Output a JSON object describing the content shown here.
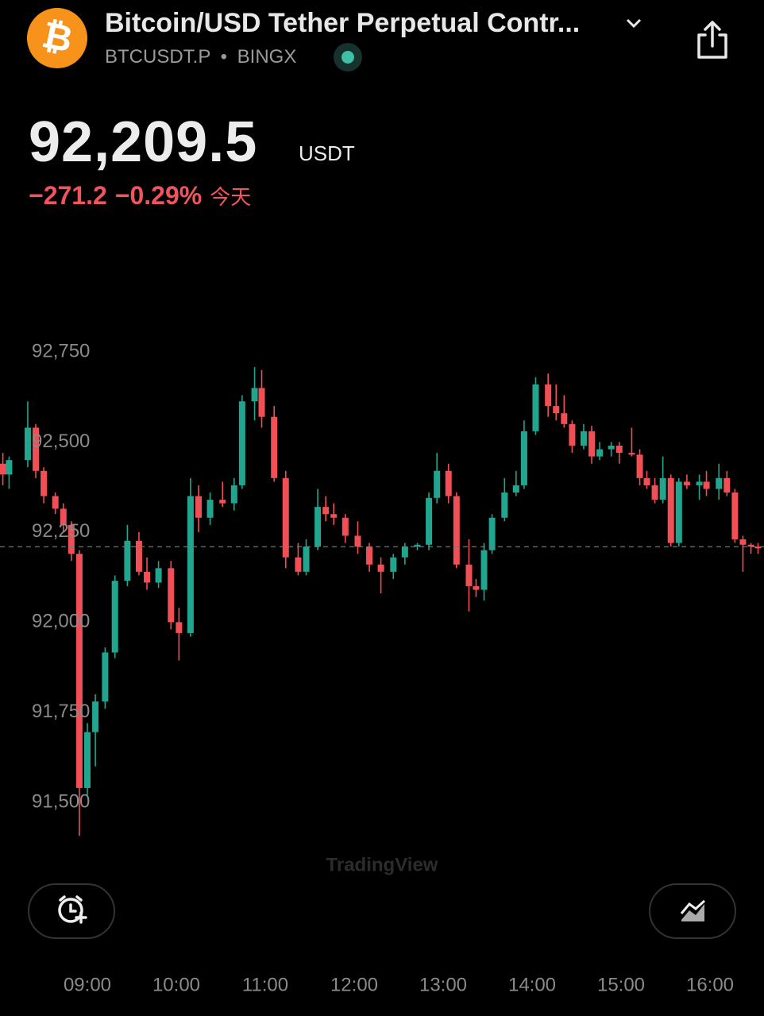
{
  "header": {
    "logo_symbol": "₿",
    "title": "Bitcoin/USD Tether Perpetual Contr...",
    "symbol": "BTCUSDT.P",
    "separator": "•",
    "exchange": "BINGX",
    "price": "92,209.5",
    "currency": "USDT",
    "change": "−271.2",
    "change_percent": "−0.29%",
    "period": "今天"
  },
  "watermark": "TradingView",
  "chart_data": {
    "type": "candlestick",
    "up_color": "#22a58f",
    "down_color": "#ef4f55",
    "last_price": 92209.5,
    "x": [
      8.05,
      8.12,
      8.33,
      8.42,
      8.51,
      8.64,
      8.73,
      8.82,
      8.91,
      9.0,
      9.09,
      9.2,
      9.31,
      9.45,
      9.58,
      9.67,
      9.8,
      9.94,
      10.03,
      10.16,
      10.25,
      10.38,
      10.52,
      10.65,
      10.74,
      10.88,
      10.96,
      11.1,
      11.23,
      11.37,
      11.46,
      11.59,
      11.68,
      11.77,
      11.9,
      12.04,
      12.17,
      12.3,
      12.44,
      12.57,
      12.71,
      12.84,
      12.93,
      13.06,
      13.15,
      13.29,
      13.37,
      13.46,
      13.55,
      13.69,
      13.82,
      13.91,
      14.04,
      14.18,
      14.27,
      14.36,
      14.45,
      14.58,
      14.67,
      14.76,
      14.89,
      14.98,
      15.12,
      15.21,
      15.29,
      15.38,
      15.47,
      15.56,
      15.65,
      15.74,
      15.88,
      15.96,
      16.1,
      16.19,
      16.28,
      16.37,
      16.46,
      16.54
    ],
    "open": [
      92440,
      92410,
      92450,
      92540,
      92420,
      92350,
      92315,
      92270,
      92190,
      91540,
      91695,
      91780,
      91916,
      92115,
      92226,
      92140,
      92110,
      92150,
      92000,
      91970,
      92350,
      92290,
      92340,
      92330,
      92380,
      92613,
      92650,
      92570,
      92400,
      92180,
      92140,
      92210,
      92320,
      92300,
      92290,
      92240,
      92210,
      92160,
      92140,
      92180,
      92210,
      92215,
      92345,
      92420,
      92350,
      92160,
      92100,
      92090,
      92200,
      92290,
      92360,
      92380,
      92530,
      92660,
      92600,
      92580,
      92550,
      92490,
      92530,
      92460,
      92480,
      92490,
      92470,
      92465,
      92400,
      92380,
      92340,
      92400,
      92220,
      92390,
      92380,
      92390,
      92370,
      92400,
      92360,
      92230,
      92215,
      92210
    ],
    "high": [
      92470,
      92460,
      92613,
      92550,
      92430,
      92360,
      92330,
      92280,
      92200,
      91720,
      91800,
      91930,
      92130,
      92270,
      92250,
      92180,
      92170,
      92170,
      92040,
      92400,
      92380,
      92360,
      92390,
      92400,
      92630,
      92708,
      92700,
      92600,
      92420,
      92220,
      92230,
      92370,
      92350,
      92330,
      92300,
      92280,
      92220,
      92180,
      92190,
      92220,
      92220,
      92360,
      92470,
      92440,
      92360,
      92230,
      92120,
      92220,
      92300,
      92400,
      92420,
      92560,
      92680,
      92690,
      92660,
      92630,
      92560,
      92550,
      92545,
      92500,
      92500,
      92500,
      92540,
      92480,
      92420,
      92400,
      92460,
      92410,
      92400,
      92410,
      92410,
      92420,
      92440,
      92420,
      92370,
      92240,
      92220,
      92220
    ],
    "low": [
      92380,
      92370,
      92430,
      92400,
      92330,
      92300,
      92250,
      92170,
      91407,
      91520,
      91600,
      91760,
      91900,
      92100,
      92130,
      92090,
      92095,
      91980,
      91894,
      91960,
      92250,
      92270,
      92320,
      92310,
      92370,
      92560,
      92540,
      92390,
      92150,
      92130,
      92130,
      92200,
      92280,
      92270,
      92220,
      92190,
      92140,
      92080,
      92120,
      92160,
      92200,
      92200,
      92330,
      92330,
      92150,
      92030,
      92070,
      92060,
      92190,
      92280,
      92350,
      92370,
      92520,
      92570,
      92560,
      92540,
      92470,
      92480,
      92440,
      92450,
      92460,
      92440,
      92460,
      92380,
      92370,
      92330,
      92330,
      92210,
      92210,
      92370,
      92340,
      92350,
      92340,
      92350,
      92220,
      92140,
      92190,
      92190
    ],
    "close": [
      92410,
      92450,
      92540,
      92420,
      92350,
      92315,
      92270,
      92190,
      91540,
      91695,
      91780,
      91916,
      92115,
      92226,
      92140,
      92110,
      92150,
      92000,
      91970,
      92350,
      92290,
      92340,
      92330,
      92380,
      92613,
      92650,
      92570,
      92400,
      92180,
      92140,
      92210,
      92320,
      92300,
      92290,
      92240,
      92210,
      92160,
      92140,
      92180,
      92210,
      92215,
      92345,
      92420,
      92350,
      92160,
      92100,
      92090,
      92200,
      92290,
      92360,
      92380,
      92530,
      92660,
      92600,
      92580,
      92550,
      92490,
      92530,
      92460,
      92480,
      92490,
      92470,
      92465,
      92400,
      92380,
      92340,
      92400,
      92220,
      92390,
      92380,
      92390,
      92370,
      92400,
      92360,
      92230,
      92215,
      92210,
      92205
    ],
    "xlim": [
      8.018,
      16.607
    ],
    "ylim": [
      91390,
      92845
    ],
    "xticks": [
      {
        "value": 9,
        "label": "09:00"
      },
      {
        "value": 10,
        "label": "10:00"
      },
      {
        "value": 11,
        "label": "11:00"
      },
      {
        "value": 12,
        "label": "12:00"
      },
      {
        "value": 13,
        "label": "13:00"
      },
      {
        "value": 14,
        "label": "14:00"
      },
      {
        "value": 15,
        "label": "15:00"
      },
      {
        "value": 16,
        "label": "16:00"
      }
    ],
    "yticks": [
      {
        "value": 92750,
        "label": "92,750"
      },
      {
        "value": 92500,
        "label": "92,500"
      },
      {
        "value": 92250,
        "label": "92,250"
      },
      {
        "value": 92000,
        "label": "92,000"
      },
      {
        "value": 91750,
        "label": "91,750"
      },
      {
        "value": 91500,
        "label": "91,500"
      }
    ],
    "grid": false
  }
}
